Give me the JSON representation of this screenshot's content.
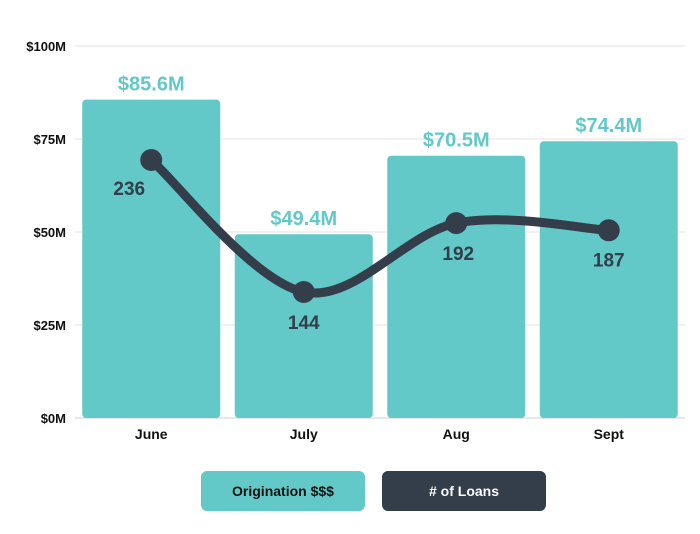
{
  "colors": {
    "bar": "#63c9c8",
    "line": "#343d4a",
    "grid": "#e3e3e3",
    "bar_label": "#63c9c8",
    "line_label": "#343d4a"
  },
  "legend": {
    "origination": "Origination $$$",
    "loans": "# of Loans"
  },
  "chart_data": {
    "type": "bar",
    "categories": [
      "June",
      "July",
      "Aug",
      "Sept"
    ],
    "series": [
      {
        "name": "Origination $$$",
        "type": "bar",
        "values": [
          85.6,
          49.4,
          70.5,
          74.4
        ],
        "labels": [
          "$85.6M",
          "$49.4M",
          "$70.5M",
          "$74.4M"
        ],
        "color": "#63c9c8"
      },
      {
        "name": "# of Loans",
        "type": "line",
        "smooth": true,
        "values": [
          236,
          144,
          192,
          187
        ],
        "labels": [
          "236",
          "144",
          "192",
          "187"
        ],
        "color": "#343d4a"
      }
    ],
    "ylim": [
      0,
      100
    ],
    "yticks": [
      0,
      25,
      50,
      75,
      100
    ],
    "ytick_labels": [
      "$0M",
      "$25M",
      "$50M",
      "$75M",
      "$100M"
    ],
    "grid": true,
    "legend_position": "bottom"
  }
}
